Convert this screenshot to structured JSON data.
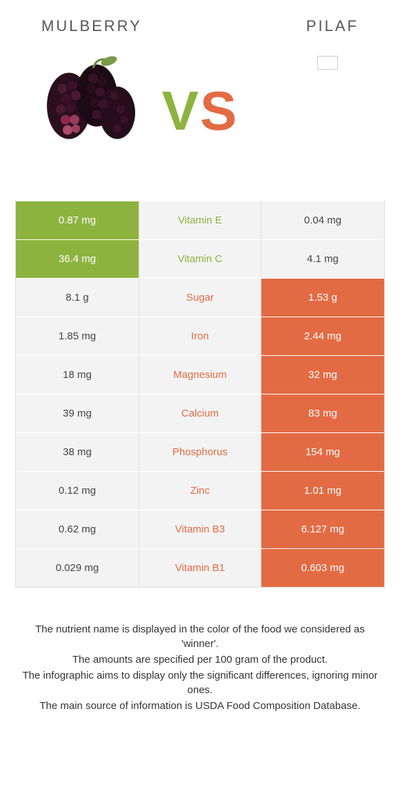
{
  "colors": {
    "left": "#8db33f",
    "right": "#e36b44",
    "neutral_bg": "#f3f3f3",
    "neutral_fg": "#444444"
  },
  "food_left": "Mulberry",
  "food_right": "Pilaf",
  "vs": {
    "v": "V",
    "s": "S"
  },
  "rows": [
    {
      "left": "0.87 mg",
      "name": "Vitamin E",
      "right": "0.04 mg",
      "winner": "left"
    },
    {
      "left": "36.4 mg",
      "name": "Vitamin C",
      "right": "4.1 mg",
      "winner": "left"
    },
    {
      "left": "8.1 g",
      "name": "Sugar",
      "right": "1.53 g",
      "winner": "right"
    },
    {
      "left": "1.85 mg",
      "name": "Iron",
      "right": "2.44 mg",
      "winner": "right"
    },
    {
      "left": "18 mg",
      "name": "Magnesium",
      "right": "32 mg",
      "winner": "right"
    },
    {
      "left": "39 mg",
      "name": "Calcium",
      "right": "83 mg",
      "winner": "right"
    },
    {
      "left": "38 mg",
      "name": "Phosphorus",
      "right": "154 mg",
      "winner": "right"
    },
    {
      "left": "0.12 mg",
      "name": "Zinc",
      "right": "1.01 mg",
      "winner": "right"
    },
    {
      "left": "0.62 mg",
      "name": "Vitamin B3",
      "right": "6.127 mg",
      "winner": "right"
    },
    {
      "left": "0.029 mg",
      "name": "Vitamin B1",
      "right": "0.603 mg",
      "winner": "right"
    }
  ],
  "footer": [
    "The nutrient name is displayed in the color of the food we considered as 'winner'.",
    "The amounts are specified per 100 gram of the product.",
    "The infographic aims to display only the significant differences, ignoring minor ones.",
    "The main source of information is USDA Food Composition Database."
  ]
}
